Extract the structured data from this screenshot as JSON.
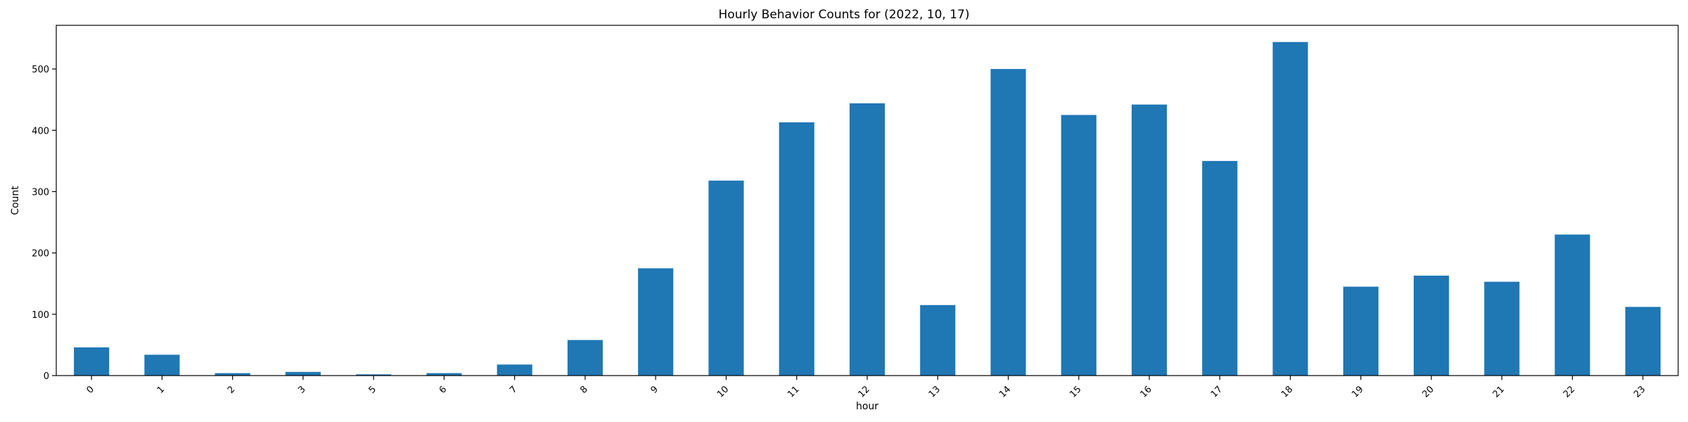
{
  "chart_data": {
    "type": "bar",
    "title": "Hourly Behavior Counts for (2022, 10, 17)",
    "xlabel": "hour",
    "ylabel": "Count",
    "categories": [
      "0",
      "1",
      "2",
      "3",
      "5",
      "6",
      "7",
      "8",
      "9",
      "10",
      "11",
      "12",
      "13",
      "14",
      "15",
      "16",
      "17",
      "18",
      "19",
      "20",
      "21",
      "22",
      "23"
    ],
    "values": [
      46,
      34,
      4,
      6,
      2,
      4,
      18,
      58,
      175,
      318,
      413,
      444,
      115,
      500,
      425,
      442,
      350,
      544,
      145,
      163,
      153,
      230,
      112
    ],
    "yticks": [
      0,
      100,
      200,
      300,
      400,
      500
    ],
    "ylim": [
      0,
      571.2
    ],
    "grid": false,
    "bar_color": "#1f77b4"
  }
}
